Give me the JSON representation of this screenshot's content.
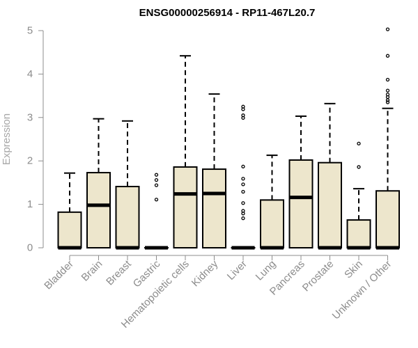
{
  "chart_data": {
    "type": "boxplot",
    "title": "ENSG00000256914 - RP11-467L20.7",
    "ylabel": "Expression",
    "xlabel": "",
    "ylim": [
      0,
      5
    ],
    "yticks": [
      0,
      1,
      2,
      3,
      4,
      5
    ],
    "grid": false,
    "colors": {
      "box_fill": "#ede6cc",
      "box_stroke": "#000000",
      "axis": "#8c8c8c",
      "title": "#000000"
    },
    "categories": [
      "Bladder",
      "Brain",
      "Breast",
      "Gastric",
      "Hematopoietic cells",
      "Kidney",
      "Liver",
      "Lung",
      "Pancreas",
      "Prostate",
      "Skin",
      "Unknown / Other"
    ],
    "boxes": [
      {
        "category": "Bladder",
        "whisker_low": 0,
        "q1": 0,
        "median": 0,
        "q3": 0.82,
        "whisker_high": 1.72,
        "outliers": []
      },
      {
        "category": "Brain",
        "whisker_low": 0,
        "q1": 0,
        "median": 0.98,
        "q3": 1.73,
        "whisker_high": 2.97,
        "outliers": []
      },
      {
        "category": "Breast",
        "whisker_low": 0,
        "q1": 0,
        "median": 0,
        "q3": 1.41,
        "whisker_high": 2.92,
        "outliers": []
      },
      {
        "category": "Gastric",
        "whisker_low": 0,
        "q1": 0,
        "median": 0,
        "q3": 0,
        "whisker_high": 0,
        "outliers": [
          1.11,
          1.44,
          1.56,
          1.68
        ]
      },
      {
        "category": "Hematopoietic cells",
        "whisker_low": 0,
        "q1": 0,
        "median": 1.24,
        "q3": 1.86,
        "whisker_high": 4.42,
        "outliers": []
      },
      {
        "category": "Kidney",
        "whisker_low": 0,
        "q1": 0,
        "median": 1.25,
        "q3": 1.81,
        "whisker_high": 3.54,
        "outliers": []
      },
      {
        "category": "Liver",
        "whisker_low": 0,
        "q1": 0,
        "median": 0,
        "q3": 0,
        "whisker_high": 0,
        "outliers": [
          0.68,
          0.79,
          0.85,
          1.03,
          1.29,
          1.46,
          1.59,
          1.87,
          2.99,
          3.05,
          3.19,
          3.25
        ]
      },
      {
        "category": "Lung",
        "whisker_low": 0,
        "q1": 0,
        "median": 0,
        "q3": 1.1,
        "whisker_high": 2.13,
        "outliers": []
      },
      {
        "category": "Pancreas",
        "whisker_low": 0,
        "q1": 0,
        "median": 1.16,
        "q3": 2.02,
        "whisker_high": 3.03,
        "outliers": []
      },
      {
        "category": "Prostate",
        "whisker_low": 0,
        "q1": 0,
        "median": 0,
        "q3": 1.96,
        "whisker_high": 3.32,
        "outliers": []
      },
      {
        "category": "Skin",
        "whisker_low": 0,
        "q1": 0,
        "median": 0,
        "q3": 0.64,
        "whisker_high": 1.36,
        "outliers": [
          1.86,
          2.4
        ]
      },
      {
        "category": "Unknown / Other",
        "whisker_low": 0,
        "q1": 0,
        "median": 0,
        "q3": 1.31,
        "whisker_high": 3.21,
        "outliers": [
          3.35,
          3.4,
          3.47,
          3.53,
          3.62,
          3.87,
          4.42,
          5.03
        ]
      }
    ]
  }
}
